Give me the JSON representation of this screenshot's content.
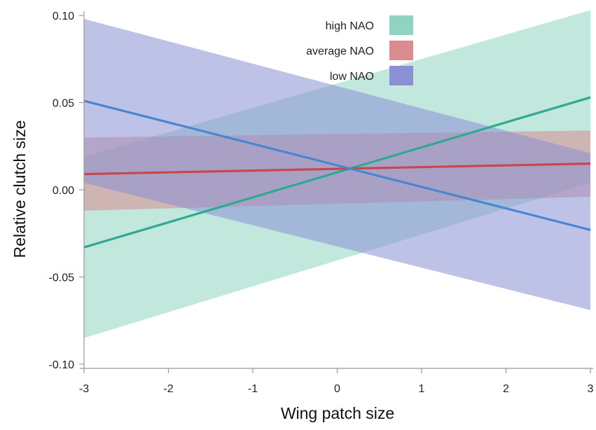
{
  "chart_data": {
    "type": "line",
    "xlabel": "Wing patch size",
    "ylabel": "Relative clutch size",
    "xlim": [
      -3,
      3
    ],
    "ylim": [
      -0.1,
      0.1
    ],
    "xticks": [
      -3,
      -2,
      -1,
      0,
      1,
      2,
      3
    ],
    "xtick_labels": [
      "-3",
      "-2",
      "-1",
      "0",
      "1",
      "2",
      "3"
    ],
    "yticks": [
      -0.1,
      -0.05,
      0.0,
      0.05,
      0.1
    ],
    "ytick_labels": [
      "-0.10",
      "-0.05",
      "0.00",
      "0.05",
      "0.10"
    ],
    "grid": false,
    "legend_position": "top-right",
    "series": [
      {
        "name": "high NAO",
        "color": "#2eaa90",
        "band_color": "#8fd3c1",
        "x": [
          -3,
          3
        ],
        "y": [
          -0.033,
          0.053
        ],
        "ci_lower": [
          -0.085,
          0.004
        ],
        "ci_upper": [
          0.019,
          0.103
        ]
      },
      {
        "name": "average NAO",
        "color": "#c8474a",
        "band_color": "#d98b8f",
        "x": [
          -3,
          3
        ],
        "y": [
          0.009,
          0.015
        ],
        "ci_lower": [
          -0.012,
          -0.004
        ],
        "ci_upper": [
          0.03,
          0.034
        ]
      },
      {
        "name": "low NAO",
        "color": "#4a86d0",
        "band_color": "#8b8fd4",
        "x": [
          -3,
          3
        ],
        "y": [
          0.051,
          -0.023
        ],
        "ci_lower": [
          0.004,
          -0.069
        ],
        "ci_upper": [
          0.098,
          0.021
        ]
      }
    ]
  }
}
